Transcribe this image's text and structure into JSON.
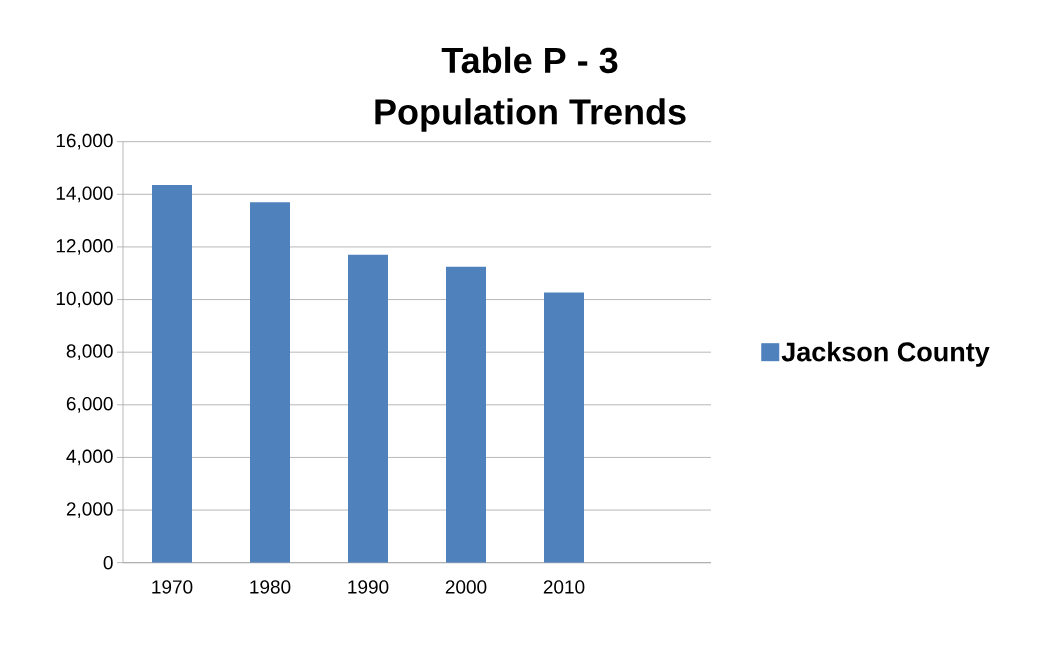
{
  "chart_data": {
    "type": "bar",
    "title": "Table P - 3",
    "subtitle": "Population Trends",
    "categories": [
      "1970",
      "1980",
      "1990",
      "2000",
      "2010",
      null
    ],
    "series": [
      {
        "name": "Jackson County",
        "color": "#4f81bd",
        "values": [
          14350,
          13700,
          11700,
          11250,
          10270,
          null
        ]
      }
    ],
    "ylim": [
      0,
      16000
    ],
    "yticks": [
      {
        "value": 0,
        "label": "0"
      },
      {
        "value": 2000,
        "label": "2,000"
      },
      {
        "value": 4000,
        "label": "4,000"
      },
      {
        "value": 6000,
        "label": "6,000"
      },
      {
        "value": 8000,
        "label": "8,000"
      },
      {
        "value": 10000,
        "label": "10,000"
      },
      {
        "value": 12000,
        "label": "12,000"
      },
      {
        "value": 14000,
        "label": "14,000"
      },
      {
        "value": 16000,
        "label": "16,000"
      }
    ],
    "grid": "y",
    "legend": "right"
  }
}
